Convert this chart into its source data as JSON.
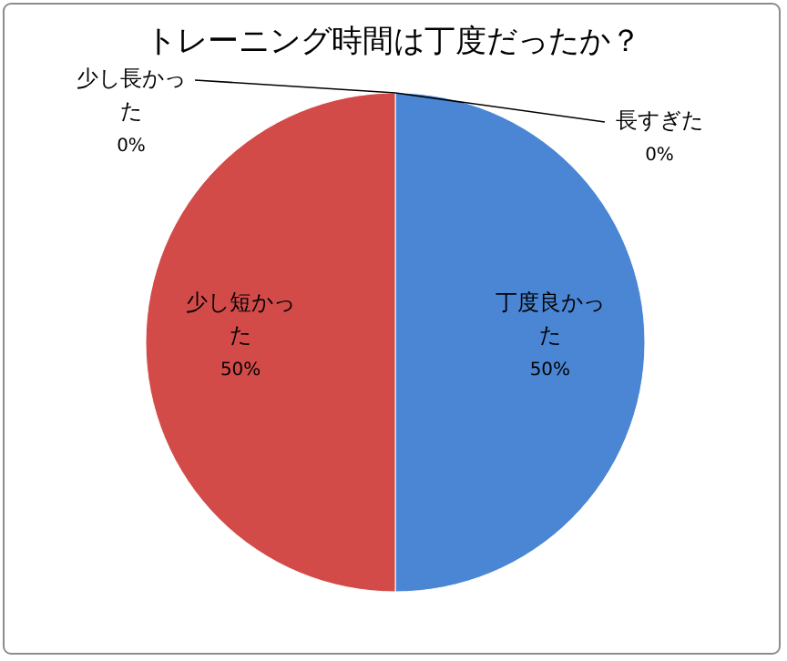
{
  "chart_data": {
    "type": "pie",
    "title": "トレーニング時間は丁度だったか？",
    "categories": [
      "長すぎた",
      "丁度良かった",
      "少し短かった",
      "少し長かった"
    ],
    "values": [
      0,
      50,
      50,
      0
    ],
    "value_labels": [
      "0%",
      "50%",
      "50%",
      "0%"
    ],
    "colors": [
      "#9bbb59",
      "#4a86d4",
      "#d24b49",
      "#8064a2"
    ]
  }
}
